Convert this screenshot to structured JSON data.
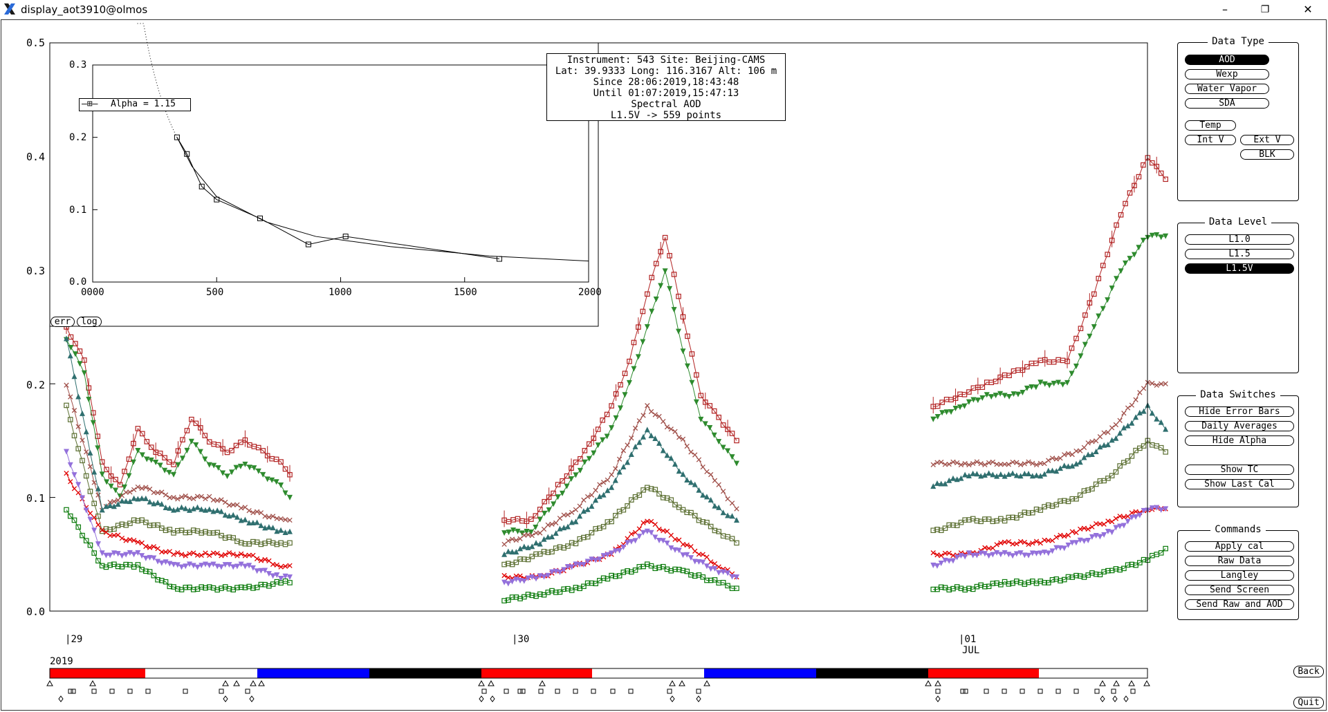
{
  "window": {
    "title": "display_aot3910@olmos",
    "minimize": "–",
    "maximize": "❐",
    "close": "✕"
  },
  "info_box": {
    "line1": "Instrument: 543 Site: Beijing-CAMS",
    "line2": "Lat: 39.9333 Long: 116.3167 Alt: 106 m",
    "line3": "Since 28:06:2019,18:43:48",
    "line4": "Until 01:07:2019,15:47:13",
    "line5": "Spectral AOD",
    "line6": "L1.5V -> 559 points"
  },
  "inset": {
    "legend": "Alpha = 1.15",
    "err_button": "err",
    "log_button": "log",
    "y_ticks": [
      "0.3",
      "0.2",
      "0.1",
      "0.0"
    ],
    "x_ticks": [
      "0000",
      "500",
      "1000",
      "1500",
      "2000"
    ]
  },
  "main_axis": {
    "y_ticks": [
      "0.5",
      "0.4",
      "0.3",
      "0.2",
      "0.1",
      "0.0"
    ],
    "day_labels": [
      "29",
      "30",
      "01"
    ],
    "month_label": "JUL",
    "year_label": "2019"
  },
  "panels": {
    "data_type": {
      "title": "Data Type",
      "aod": "AOD",
      "wexp": "Wexp",
      "water_vapor": "Water Vapor",
      "sda": "SDA",
      "temp": "Temp",
      "int_v": "Int V",
      "ext_v": "Ext V",
      "blk": "BLK"
    },
    "data_level": {
      "title": "Data Level",
      "l10": "L1.0",
      "l15": "L1.5",
      "l15v": "L1.5V"
    },
    "data_switches": {
      "title": "Data Switches",
      "hide_error_bars": "Hide Error Bars",
      "daily_averages": "Daily Averages",
      "hide_alpha": "Hide Alpha",
      "show_tc": "Show TC",
      "show_last_cal": "Show Last Cal"
    },
    "commands": {
      "title": "Commands",
      "apply_cal": "Apply cal",
      "raw_data": "Raw Data",
      "langley": "Langley",
      "send_screen": "Send Screen",
      "send_raw_and_aod": "Send Raw and AOD"
    }
  },
  "nav": {
    "back": "Back",
    "quit": "Quit"
  },
  "chart_data": [
    {
      "type": "scatter",
      "title": "",
      "xlabel": "",
      "ylabel": "",
      "ylim": [
        0,
        0.5
      ],
      "x_ticks": [
        "29",
        "30",
        "01 JUL"
      ],
      "series": [
        {
          "color": "#b22222",
          "marker": "square",
          "segments": [
            {
              "x": [
                0.0,
                0.04,
                0.08,
                0.12,
                0.16,
                0.2,
                0.24,
                0.28,
                0.32,
                0.36,
                0.4,
                0.44,
                0.48,
                0.5
              ],
              "y": [
                0.25,
                0.22,
                0.13,
                0.11,
                0.16,
                0.14,
                0.13,
                0.17,
                0.15,
                0.14,
                0.15,
                0.14,
                0.13,
                0.12
              ]
            },
            {
              "x": [
                0.98,
                1.04,
                1.1,
                1.16,
                1.22,
                1.26,
                1.3,
                1.34,
                1.38,
                1.42,
                1.46,
                1.5
              ],
              "y": [
                0.08,
                0.08,
                0.11,
                0.14,
                0.18,
                0.22,
                0.28,
                0.33,
                0.26,
                0.19,
                0.17,
                0.15
              ]
            },
            {
              "x": [
                1.94,
                2.0,
                2.06,
                2.12,
                2.18,
                2.24,
                2.3,
                2.36,
                2.42,
                2.46
              ],
              "y": [
                0.18,
                0.19,
                0.2,
                0.21,
                0.22,
                0.22,
                0.28,
                0.35,
                0.4,
                0.38
              ]
            }
          ]
        },
        {
          "color": "#2e8b2e",
          "marker": "triangle-down",
          "segments": [
            {
              "x": [
                0.0,
                0.04,
                0.08,
                0.12,
                0.16,
                0.2,
                0.24,
                0.28,
                0.32,
                0.36,
                0.4,
                0.44,
                0.48,
                0.5
              ],
              "y": [
                0.24,
                0.21,
                0.12,
                0.1,
                0.14,
                0.13,
                0.12,
                0.15,
                0.13,
                0.12,
                0.13,
                0.12,
                0.11,
                0.1
              ]
            },
            {
              "x": [
                0.98,
                1.04,
                1.1,
                1.16,
                1.22,
                1.26,
                1.3,
                1.34,
                1.38,
                1.42,
                1.46,
                1.5
              ],
              "y": [
                0.07,
                0.07,
                0.1,
                0.13,
                0.16,
                0.2,
                0.25,
                0.3,
                0.23,
                0.17,
                0.15,
                0.13
              ]
            },
            {
              "x": [
                1.94,
                2.0,
                2.06,
                2.12,
                2.18,
                2.24,
                2.3,
                2.36,
                2.42,
                2.46
              ],
              "y": [
                0.17,
                0.18,
                0.19,
                0.19,
                0.2,
                0.2,
                0.25,
                0.3,
                0.33,
                0.33
              ]
            }
          ]
        },
        {
          "color": "#a0504a",
          "marker": "x",
          "segments": [
            {
              "x": [
                0.0,
                0.08,
                0.16,
                0.24,
                0.32,
                0.4,
                0.48,
                0.5
              ],
              "y": [
                0.2,
                0.09,
                0.11,
                0.1,
                0.1,
                0.09,
                0.08,
                0.08
              ]
            },
            {
              "x": [
                0.98,
                1.06,
                1.14,
                1.22,
                1.3,
                1.38,
                1.46,
                1.5
              ],
              "y": [
                0.06,
                0.07,
                0.09,
                0.12,
                0.18,
                0.15,
                0.11,
                0.09
              ]
            },
            {
              "x": [
                1.94,
                2.02,
                2.1,
                2.18,
                2.26,
                2.34,
                2.42,
                2.46
              ],
              "y": [
                0.13,
                0.13,
                0.13,
                0.13,
                0.14,
                0.16,
                0.2,
                0.2
              ]
            }
          ]
        },
        {
          "color": "#2f6f6f",
          "marker": "triangle",
          "segments": [
            {
              "x": [
                0.0,
                0.08,
                0.16,
                0.24,
                0.32,
                0.4,
                0.48,
                0.5
              ],
              "y": [
                0.24,
                0.09,
                0.1,
                0.09,
                0.09,
                0.08,
                0.07,
                0.07
              ]
            },
            {
              "x": [
                0.98,
                1.06,
                1.14,
                1.22,
                1.3,
                1.38,
                1.46,
                1.5
              ],
              "y": [
                0.05,
                0.06,
                0.08,
                0.11,
                0.16,
                0.12,
                0.09,
                0.08
              ]
            },
            {
              "x": [
                1.94,
                2.02,
                2.1,
                2.18,
                2.26,
                2.34,
                2.42,
                2.46
              ],
              "y": [
                0.11,
                0.12,
                0.12,
                0.12,
                0.13,
                0.15,
                0.18,
                0.16
              ]
            }
          ]
        },
        {
          "color": "#5a6e30",
          "marker": "square",
          "segments": [
            {
              "x": [
                0.0,
                0.08,
                0.16,
                0.24,
                0.32,
                0.4,
                0.48,
                0.5
              ],
              "y": [
                0.18,
                0.07,
                0.08,
                0.07,
                0.07,
                0.06,
                0.06,
                0.06
              ]
            },
            {
              "x": [
                0.98,
                1.06,
                1.14,
                1.22,
                1.3,
                1.38,
                1.46,
                1.5
              ],
              "y": [
                0.04,
                0.05,
                0.06,
                0.08,
                0.11,
                0.09,
                0.07,
                0.06
              ]
            },
            {
              "x": [
                1.94,
                2.02,
                2.1,
                2.18,
                2.26,
                2.34,
                2.42,
                2.46
              ],
              "y": [
                0.07,
                0.08,
                0.08,
                0.09,
                0.1,
                0.12,
                0.15,
                0.14
              ]
            }
          ]
        },
        {
          "color": "#e00000",
          "marker": "x",
          "segments": [
            {
              "x": [
                0.0,
                0.08,
                0.16,
                0.24,
                0.32,
                0.4,
                0.48,
                0.5
              ],
              "y": [
                0.12,
                0.07,
                0.06,
                0.05,
                0.05,
                0.05,
                0.04,
                0.04
              ]
            },
            {
              "x": [
                0.98,
                1.06,
                1.14,
                1.22,
                1.3,
                1.38,
                1.46,
                1.5
              ],
              "y": [
                0.03,
                0.03,
                0.04,
                0.05,
                0.08,
                0.06,
                0.04,
                0.03
              ]
            },
            {
              "x": [
                1.94,
                2.02,
                2.1,
                2.18,
                2.26,
                2.34,
                2.42,
                2.46
              ],
              "y": [
                0.05,
                0.05,
                0.06,
                0.06,
                0.07,
                0.08,
                0.09,
                0.09
              ]
            }
          ]
        },
        {
          "color": "#9370db",
          "marker": "triangle-down",
          "segments": [
            {
              "x": [
                0.0,
                0.08,
                0.16,
                0.24,
                0.32,
                0.4,
                0.48,
                0.5
              ],
              "y": [
                0.14,
                0.05,
                0.05,
                0.04,
                0.04,
                0.04,
                0.03,
                0.03
              ]
            },
            {
              "x": [
                0.98,
                1.06,
                1.14,
                1.22,
                1.3,
                1.38,
                1.46,
                1.5
              ],
              "y": [
                0.025,
                0.03,
                0.04,
                0.05,
                0.07,
                0.05,
                0.035,
                0.03
              ]
            },
            {
              "x": [
                1.94,
                2.02,
                2.1,
                2.18,
                2.26,
                2.34,
                2.42,
                2.46
              ],
              "y": [
                0.04,
                0.05,
                0.05,
                0.05,
                0.06,
                0.07,
                0.09,
                0.09
              ]
            }
          ]
        },
        {
          "color": "#0a7a0a",
          "marker": "square",
          "segments": [
            {
              "x": [
                0.0,
                0.08,
                0.16,
                0.24,
                0.32,
                0.4,
                0.48,
                0.5
              ],
              "y": [
                0.09,
                0.04,
                0.04,
                0.02,
                0.02,
                0.02,
                0.025,
                0.025
              ]
            },
            {
              "x": [
                0.98,
                1.06,
                1.14,
                1.22,
                1.3,
                1.38,
                1.46,
                1.5
              ],
              "y": [
                0.01,
                0.015,
                0.02,
                0.03,
                0.04,
                0.035,
                0.025,
                0.02
              ]
            },
            {
              "x": [
                1.94,
                2.02,
                2.1,
                2.18,
                2.26,
                2.34,
                2.42,
                2.46
              ],
              "y": [
                0.02,
                0.02,
                0.025,
                0.025,
                0.03,
                0.035,
                0.045,
                0.055
              ]
            }
          ]
        }
      ]
    },
    {
      "type": "line",
      "title": "",
      "xlabel": "",
      "ylabel": "",
      "xlim": [
        0,
        2000
      ],
      "ylim": [
        0,
        0.3
      ],
      "legend": "Alpha = 1.15",
      "x": [
        340,
        380,
        440,
        500,
        675,
        870,
        1020,
        1640
      ],
      "y": [
        0.2,
        0.177,
        0.132,
        0.114,
        0.088,
        0.052,
        0.063,
        0.032
      ],
      "fit_x": [
        200,
        260,
        340,
        400,
        500,
        700,
        900,
        1200,
        1600,
        2000
      ],
      "fit_y": [
        0.33,
        0.27,
        0.2,
        0.16,
        0.118,
        0.083,
        0.063,
        0.049,
        0.036,
        0.029
      ]
    }
  ]
}
